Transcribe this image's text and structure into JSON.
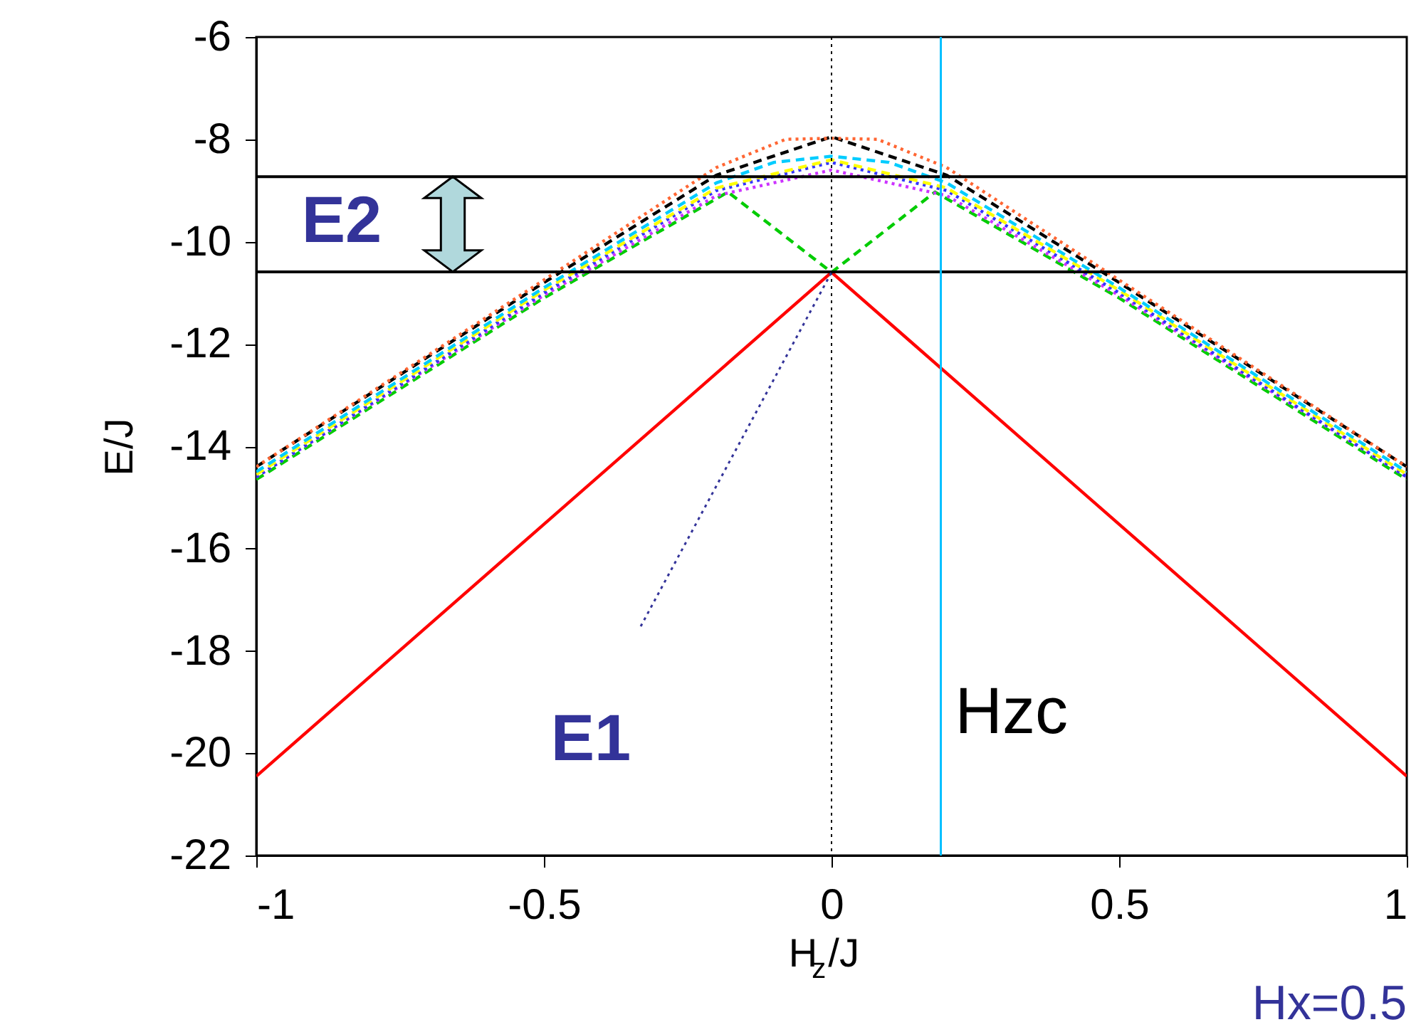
{
  "chart_data": {
    "type": "line",
    "xlabel": "H$_{z}$/J",
    "ylabel": "E/J",
    "xlim": [
      -1,
      1
    ],
    "xticks": [
      -1,
      -0.5,
      0,
      0.5,
      1
    ],
    "ylim": [
      -22,
      -6
    ],
    "yticks": [
      -22,
      -20,
      -18,
      -16,
      -14,
      -12,
      -10,
      -8,
      -6
    ],
    "grid": false,
    "marker": "none",
    "series": [
      {
        "color": "#ff0000",
        "line_style": "solid",
        "x": [
          -1,
          0,
          1
        ],
        "values": [
          -20.45,
          -10.6,
          -20.45
        ]
      },
      {
        "color": "#00cc00",
        "line_style": "dashed",
        "x": [
          -1,
          -0.5,
          -0.18,
          0,
          0.18,
          0.5,
          1
        ],
        "values": [
          -14.65,
          -11.1,
          -9.03,
          -10.6,
          -9.03,
          -11.1,
          -14.65
        ]
      },
      {
        "color": "#cc33ff",
        "line_style": "dotted",
        "x": [
          -1,
          -0.5,
          -0.2,
          0,
          0.2,
          0.5,
          1
        ],
        "values": [
          -14.6,
          -11.05,
          -9.1,
          -8.6,
          -9.1,
          -11.05,
          -14.6
        ]
      },
      {
        "color": "#3333ff",
        "line_style": "dotted",
        "x": [
          -1,
          -0.5,
          -0.2,
          0,
          0.2,
          0.5,
          1
        ],
        "values": [
          -14.6,
          -11.0,
          -9.0,
          -8.45,
          -9.0,
          -11.0,
          -14.6
        ]
      },
      {
        "color": "#ffff00",
        "line_style": "dashed",
        "x": [
          -1,
          -0.5,
          -0.2,
          0,
          0.2,
          0.5,
          1
        ],
        "values": [
          -14.55,
          -10.95,
          -8.95,
          -8.4,
          -8.95,
          -10.95,
          -14.55
        ]
      },
      {
        "color": "#00ccff",
        "line_style": "dashed",
        "x": [
          -1,
          -0.5,
          -0.2,
          -0.1,
          0,
          0.1,
          0.2,
          0.5,
          1
        ],
        "values": [
          -14.5,
          -10.9,
          -8.85,
          -8.45,
          -8.33,
          -8.45,
          -8.85,
          -10.9,
          -14.5
        ]
      },
      {
        "color": "#000000",
        "line_style": "dashed",
        "x": [
          -1,
          -0.5,
          -0.2,
          0,
          0.2,
          0.5,
          1
        ],
        "values": [
          -14.4,
          -10.8,
          -8.7,
          -7.95,
          -8.7,
          -10.8,
          -14.4
        ]
      },
      {
        "color": "#ff6633",
        "line_style": "dotted",
        "x": [
          -1,
          -0.5,
          -0.2,
          -0.08,
          0,
          0.08,
          0.2,
          0.5,
          1
        ],
        "values": [
          -14.4,
          -10.75,
          -8.55,
          -8.0,
          -7.98,
          -8.0,
          -8.55,
          -10.75,
          -14.4
        ]
      }
    ],
    "ref_lines": [
      {
        "axis": "y",
        "value": -8.73,
        "color": "#000000",
        "line_style": "solid"
      },
      {
        "axis": "y",
        "value": -10.59,
        "color": "#000000",
        "line_style": "solid"
      },
      {
        "axis": "x",
        "value": 0,
        "color": "#000000",
        "line_style": "dotted"
      },
      {
        "axis": "x",
        "value": 0.19,
        "color": "#00bfff",
        "line_style": "solid",
        "label": "Hzc"
      }
    ],
    "annotations": [
      "E2",
      {
        "text": "E1",
        "x": 0,
        "y": -10.6
      },
      "Hx=0.5"
    ]
  }
}
